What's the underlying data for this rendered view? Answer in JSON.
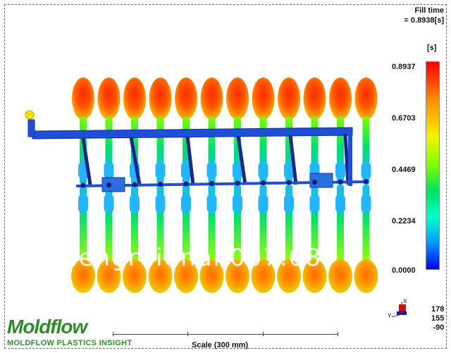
{
  "result": {
    "title": "Fill time",
    "value_line": "= 0.8938[s]",
    "unit": "[s]"
  },
  "legend": {
    "ticks": [
      "0.8937",
      "0.6703",
      "0.4469",
      "0.2234",
      "0.0000"
    ],
    "colors": [
      "#ff0000",
      "#f2f200",
      "#00e060",
      "#0090ff",
      "#0000ff"
    ]
  },
  "view": {
    "axis_x": "X",
    "axis_y": "Y",
    "rot_values": [
      "178",
      "155",
      "-90"
    ]
  },
  "branding": {
    "logo": "Moldflow",
    "subtitle": "MOLDFLOW PLASTICS INSIGHT"
  },
  "scale": {
    "label": "Scale (300 mm)"
  },
  "watermark": "hengruidnan007.08",
  "model": {
    "parts_per_row": 12,
    "rows": 2
  }
}
